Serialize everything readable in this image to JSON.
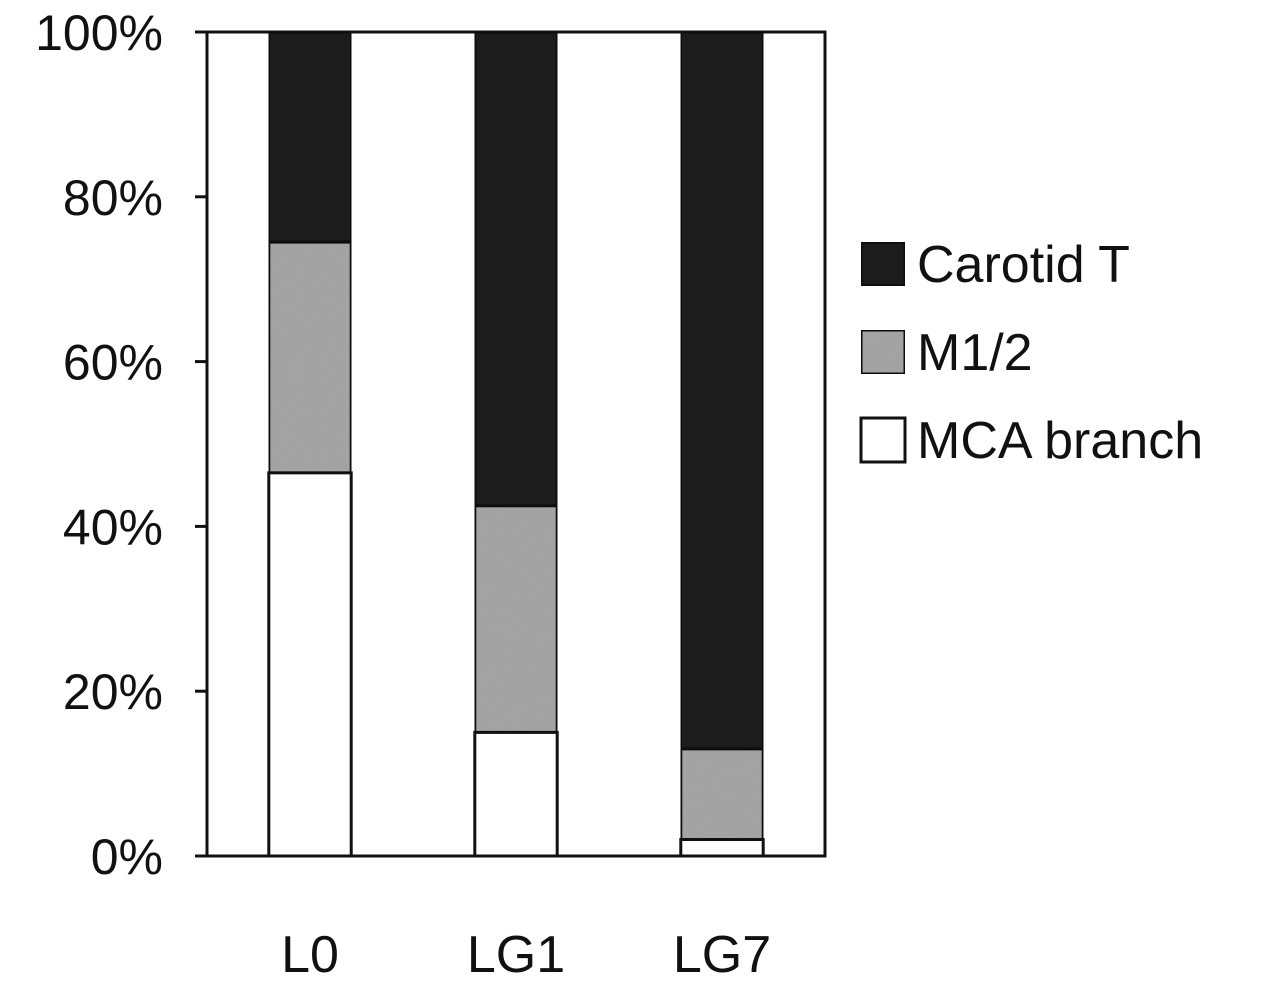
{
  "chart_data": {
    "type": "bar",
    "stacked": true,
    "percent": true,
    "categories": [
      "L0",
      "LG1",
      "LG7"
    ],
    "series": [
      {
        "name": "MCA branch",
        "color": "#ffffff",
        "values": [
          46.5,
          15.0,
          2.0
        ]
      },
      {
        "name": "M1/2",
        "color": "#a6a6a6",
        "values": [
          28.0,
          27.5,
          11.0
        ]
      },
      {
        "name": "Carotid T",
        "color": "#1c1c1c",
        "values": [
          25.5,
          57.5,
          87.0
        ]
      }
    ],
    "yticks": [
      "0%",
      "20%",
      "40%",
      "60%",
      "80%",
      "100%"
    ],
    "ylim": [
      0,
      100
    ],
    "grid": false,
    "legend": {
      "position": "right",
      "order": [
        "Carotid T",
        "M1/2",
        "MCA branch"
      ]
    },
    "title": "",
    "xlabel": "",
    "ylabel": ""
  }
}
